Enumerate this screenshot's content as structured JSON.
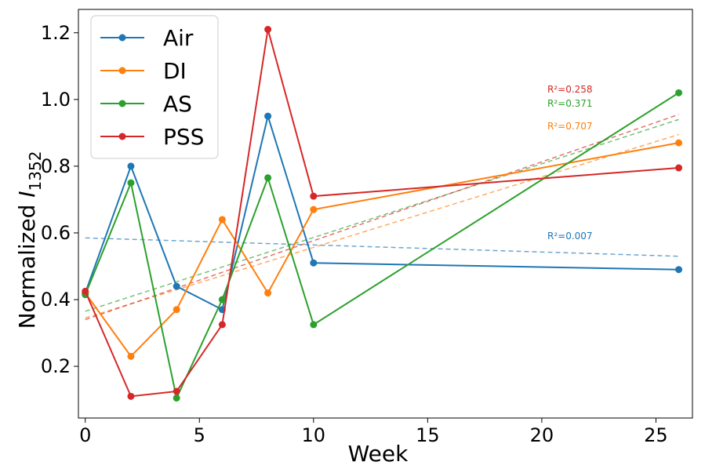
{
  "chart_data": {
    "type": "line",
    "xlabel": "Week",
    "ylabel": "Normalized ",
    "ylabel_italic": "I",
    "ylabel_sub": "1352",
    "xlim": [
      -0.3,
      26.6
    ],
    "ylim": [
      0.045,
      1.27
    ],
    "xticks": [
      0,
      5,
      10,
      15,
      20,
      25
    ],
    "yticks": [
      0.2,
      0.4,
      0.6,
      0.8,
      1.0,
      1.2
    ],
    "ytick_labels": [
      "0.2",
      "0.4",
      "0.6",
      "0.8",
      "1.0",
      "1.2"
    ],
    "grid": false,
    "legend_position": "top-left",
    "series": [
      {
        "name": "Air",
        "color": "#1f77b4",
        "x": [
          0,
          2,
          4,
          6,
          8,
          10,
          26
        ],
        "values": [
          0.42,
          0.8,
          0.44,
          0.37,
          0.95,
          0.51,
          0.49
        ],
        "trend": [
          0.585,
          0.53
        ],
        "r2": "R²=0.007"
      },
      {
        "name": "DI",
        "color": "#ff7f0e",
        "x": [
          0,
          2,
          4,
          6,
          8,
          10,
          26
        ],
        "values": [
          0.42,
          0.23,
          0.37,
          0.64,
          0.42,
          0.67,
          0.87
        ],
        "trend": [
          0.345,
          0.895
        ],
        "r2": "R²=0.707"
      },
      {
        "name": "AS",
        "color": "#2ca02c",
        "x": [
          0,
          2,
          4,
          6,
          8,
          10,
          26
        ],
        "values": [
          0.415,
          0.75,
          0.105,
          0.4,
          0.765,
          0.325,
          1.02
        ],
        "trend": [
          0.365,
          0.94
        ],
        "r2": "R²=0.371"
      },
      {
        "name": "PSS",
        "color": "#d62728",
        "x": [
          0,
          2,
          4,
          6,
          8,
          10,
          26
        ],
        "values": [
          0.425,
          0.11,
          0.125,
          0.325,
          1.21,
          0.71,
          0.795
        ],
        "trend": [
          0.34,
          0.955
        ],
        "r2": "R²=0.258"
      }
    ]
  }
}
